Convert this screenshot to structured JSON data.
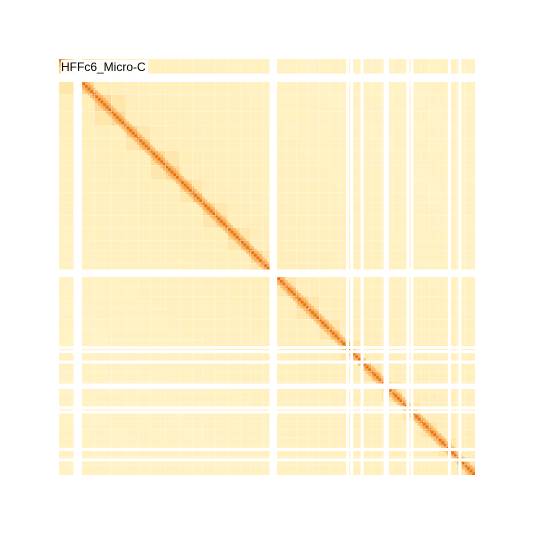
{
  "track": {
    "label": "HFFc6_Micro-C"
  },
  "colors": {
    "background_low": "#fff2c4",
    "background_mid": "#ffe9a8",
    "tad_block": "#ffd690",
    "diagonal_strong": "#e86a1c",
    "diagonal_mid": "#f4a040",
    "empty_stripe": "#ffffff"
  },
  "heatmap": {
    "empty_bins": [
      0.035,
      0.041,
      0.048,
      0.506,
      0.512,
      0.517,
      0.69,
      0.7,
      0.725,
      0.78,
      0.786,
      0.835,
      0.845,
      0.935,
      0.96
    ],
    "tad_boundaries": [
      0.0,
      0.045,
      0.085,
      0.125,
      0.16,
      0.19,
      0.22,
      0.255,
      0.29,
      0.32,
      0.345,
      0.375,
      0.405,
      0.435,
      0.46,
      0.49,
      0.52,
      0.545,
      0.57,
      0.6,
      0.625,
      0.65,
      0.675,
      0.7,
      0.725,
      0.75,
      0.775,
      0.8,
      0.825,
      0.85,
      0.87,
      0.89,
      0.91,
      0.93,
      0.955,
      0.975,
      1.0
    ]
  }
}
